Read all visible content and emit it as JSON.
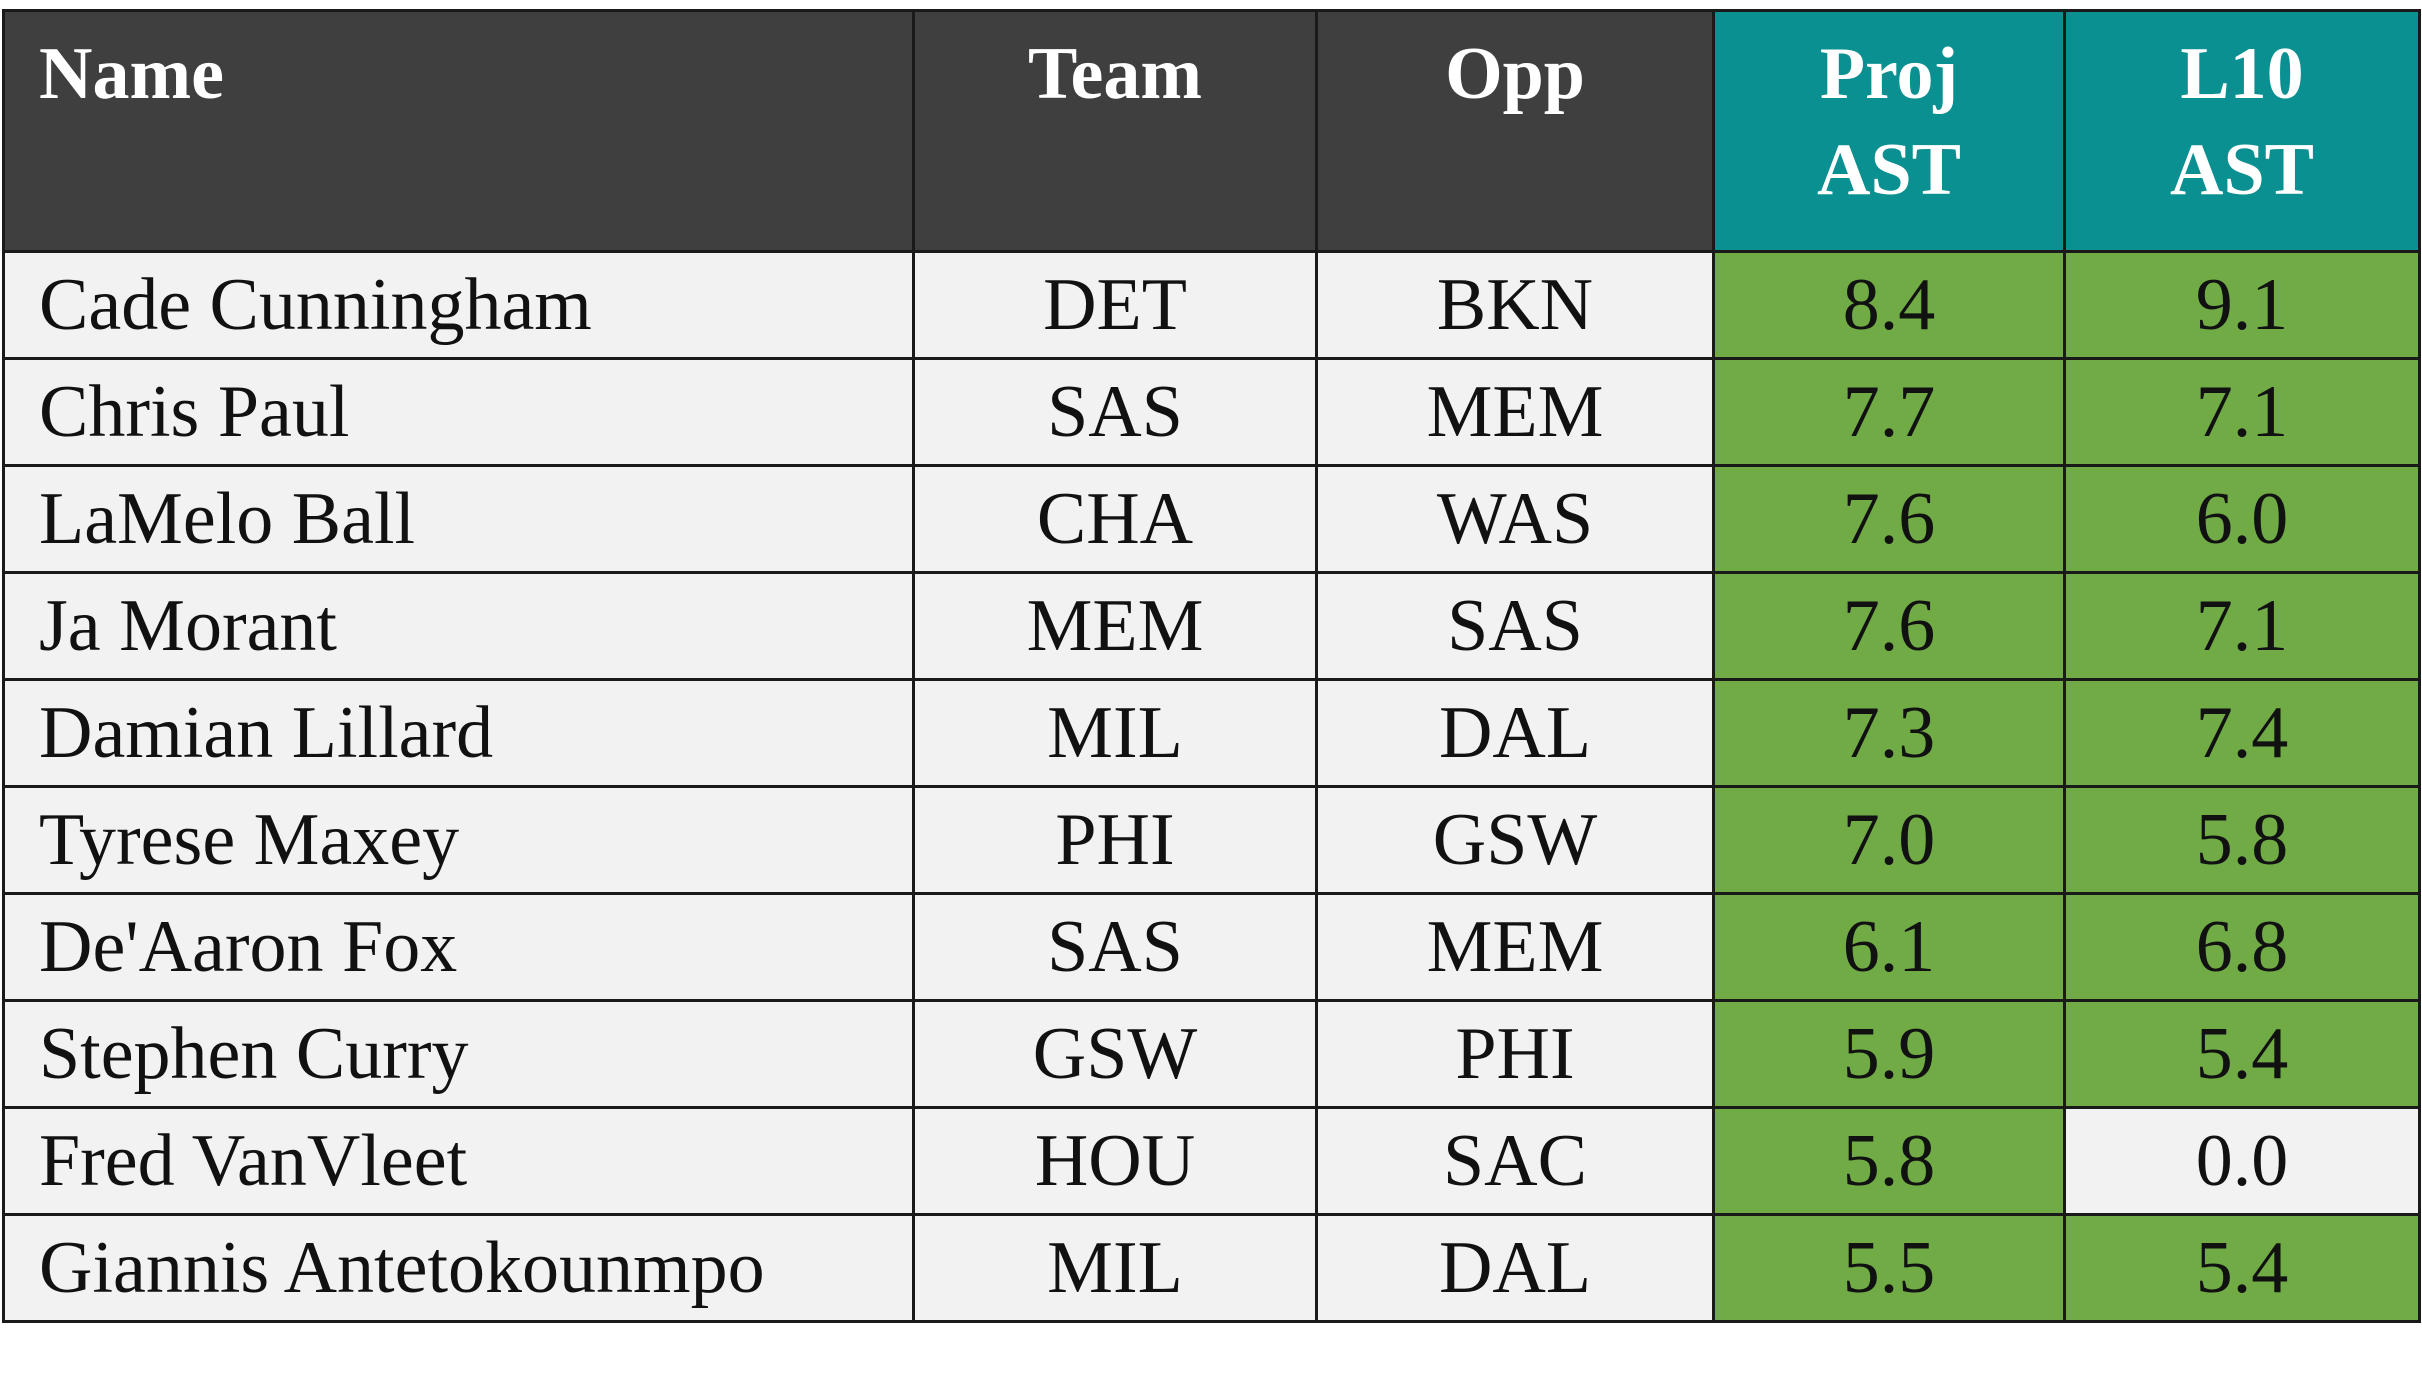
{
  "headers": {
    "name": "Name",
    "team": "Team",
    "opp": "Opp",
    "proj_line1": "Proj",
    "proj_line2": "AST",
    "l10_line1": "L10",
    "l10_line2": "AST"
  },
  "colors": {
    "header_dark": "#3f3f3f",
    "header_teal": "#0a9090",
    "highlight_green": "#70ab46",
    "row_bg": "#f2f2f2"
  },
  "rows": [
    {
      "name": "Cade Cunningham",
      "team": "DET",
      "opp": "BKN",
      "proj": "8.4",
      "l10": "9.1",
      "proj_highlight": true,
      "l10_highlight": true
    },
    {
      "name": "Chris Paul",
      "team": "SAS",
      "opp": "MEM",
      "proj": "7.7",
      "l10": "7.1",
      "proj_highlight": true,
      "l10_highlight": true
    },
    {
      "name": "LaMelo Ball",
      "team": "CHA",
      "opp": "WAS",
      "proj": "7.6",
      "l10": "6.0",
      "proj_highlight": true,
      "l10_highlight": true
    },
    {
      "name": "Ja Morant",
      "team": "MEM",
      "opp": "SAS",
      "proj": "7.6",
      "l10": "7.1",
      "proj_highlight": true,
      "l10_highlight": true
    },
    {
      "name": "Damian Lillard",
      "team": "MIL",
      "opp": "DAL",
      "proj": "7.3",
      "l10": "7.4",
      "proj_highlight": true,
      "l10_highlight": true
    },
    {
      "name": "Tyrese Maxey",
      "team": "PHI",
      "opp": "GSW",
      "proj": "7.0",
      "l10": "5.8",
      "proj_highlight": true,
      "l10_highlight": true
    },
    {
      "name": "De'Aaron Fox",
      "team": "SAS",
      "opp": "MEM",
      "proj": "6.1",
      "l10": "6.8",
      "proj_highlight": true,
      "l10_highlight": true
    },
    {
      "name": "Stephen Curry",
      "team": "GSW",
      "opp": "PHI",
      "proj": "5.9",
      "l10": "5.4",
      "proj_highlight": true,
      "l10_highlight": true
    },
    {
      "name": "Fred VanVleet",
      "team": "HOU",
      "opp": "SAC",
      "proj": "5.8",
      "l10": "0.0",
      "proj_highlight": true,
      "l10_highlight": false
    },
    {
      "name": "Giannis Antetokounmpo",
      "team": "MIL",
      "opp": "DAL",
      "proj": "5.5",
      "l10": "5.4",
      "proj_highlight": true,
      "l10_highlight": true
    }
  ]
}
